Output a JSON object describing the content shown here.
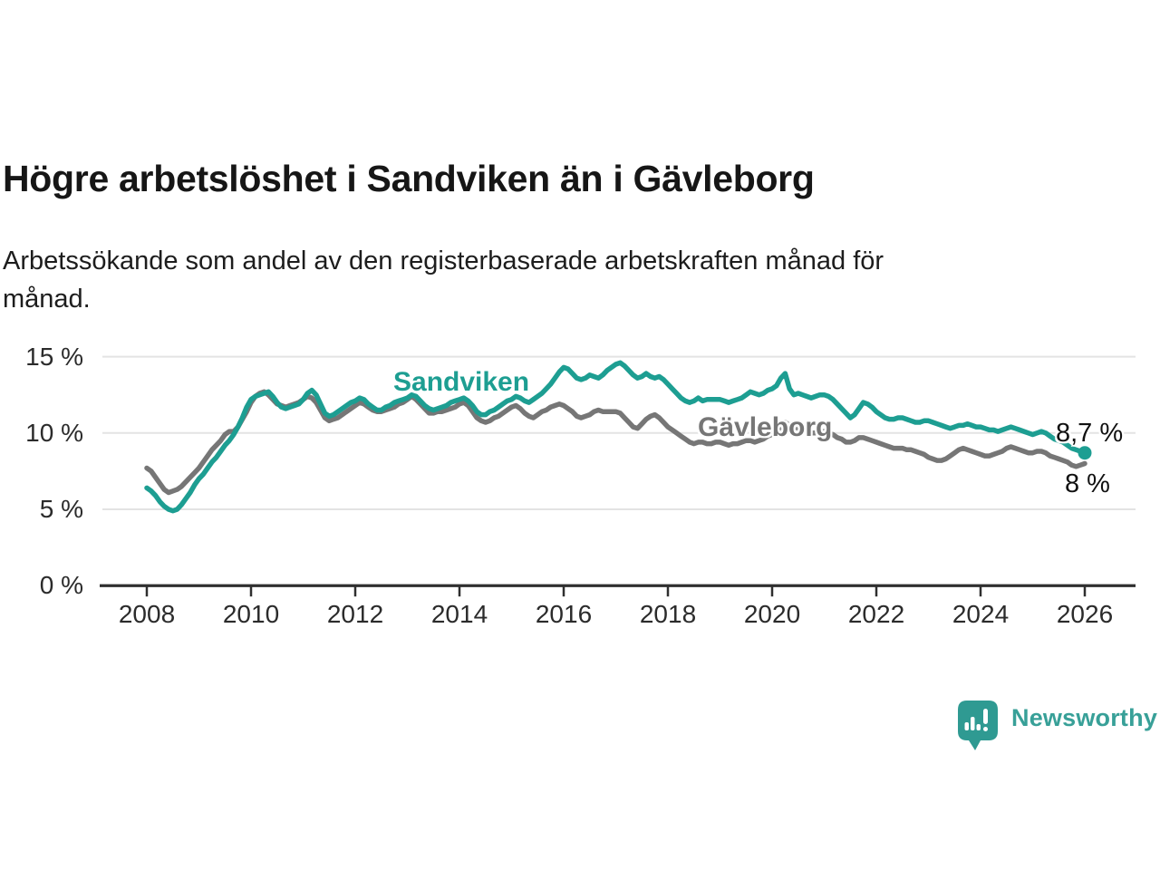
{
  "header": {
    "title": "Högre arbetslöshet i Sandviken än i Gävleborg",
    "subtitle": "Arbetssökande som andel av den registerbaserade arbetskraften månad för\nmånad."
  },
  "chart_data": {
    "type": "line",
    "title": "Högre arbetslöshet i Sandviken än i Gävleborg",
    "xlabel": "",
    "ylabel": "",
    "unit": "%",
    "frequency": "monthly",
    "x_start": "2008-01",
    "x_end": "2026-01",
    "ylim": [
      0,
      15.5
    ],
    "grid": true,
    "y_ticks": [
      {
        "value": 15,
        "label": "15 %"
      },
      {
        "value": 10,
        "label": "10 %"
      },
      {
        "value": 5,
        "label": "5 %"
      },
      {
        "value": 0,
        "label": "0 %"
      }
    ],
    "x_ticks": [
      {
        "year": 2008,
        "label": "2008"
      },
      {
        "year": 2010,
        "label": "2010"
      },
      {
        "year": 2012,
        "label": "2012"
      },
      {
        "year": 2014,
        "label": "2014"
      },
      {
        "year": 2016,
        "label": "2016"
      },
      {
        "year": 2018,
        "label": "2018"
      },
      {
        "year": 2020,
        "label": "2020"
      },
      {
        "year": 2022,
        "label": "2022"
      },
      {
        "year": 2024,
        "label": "2024"
      },
      {
        "year": 2026,
        "label": "2026"
      }
    ],
    "series": [
      {
        "name": "Sandviken",
        "color": "#1d9e92",
        "end_value": 8.7,
        "end_label": "8,7 %",
        "values": [
          6.4,
          6.2,
          5.9,
          5.5,
          5.2,
          5.0,
          4.9,
          5.0,
          5.3,
          5.7,
          6.1,
          6.6,
          7.0,
          7.3,
          7.7,
          8.1,
          8.4,
          8.8,
          9.2,
          9.5,
          9.9,
          10.4,
          11.0,
          11.7,
          12.2,
          12.4,
          12.5,
          12.6,
          12.7,
          12.4,
          12.0,
          11.7,
          11.6,
          11.7,
          11.8,
          11.9,
          12.2,
          12.6,
          12.8,
          12.5,
          11.9,
          11.3,
          11.1,
          11.2,
          11.4,
          11.6,
          11.8,
          12.0,
          12.1,
          12.3,
          12.2,
          11.9,
          11.7,
          11.5,
          11.5,
          11.7,
          11.8,
          12.0,
          12.1,
          12.2,
          12.3,
          12.5,
          12.4,
          12.1,
          11.8,
          11.6,
          11.5,
          11.6,
          11.7,
          11.8,
          12.0,
          12.1,
          12.2,
          12.3,
          12.1,
          11.8,
          11.4,
          11.2,
          11.2,
          11.4,
          11.5,
          11.7,
          11.9,
          12.1,
          12.2,
          12.4,
          12.3,
          12.1,
          12.0,
          12.2,
          12.4,
          12.6,
          12.9,
          13.2,
          13.6,
          14.0,
          14.3,
          14.2,
          13.9,
          13.6,
          13.5,
          13.6,
          13.8,
          13.7,
          13.6,
          13.8,
          14.1,
          14.3,
          14.5,
          14.6,
          14.4,
          14.1,
          13.8,
          13.6,
          13.7,
          13.9,
          13.7,
          13.6,
          13.7,
          13.5,
          13.2,
          12.9,
          12.6,
          12.3,
          12.1,
          12.0,
          12.1,
          12.3,
          12.1,
          12.2,
          12.2,
          12.2,
          12.2,
          12.1,
          12.0,
          12.1,
          12.2,
          12.3,
          12.5,
          12.7,
          12.6,
          12.5,
          12.6,
          12.8,
          12.9,
          13.1,
          13.6,
          13.9,
          12.9,
          12.5,
          12.6,
          12.5,
          12.4,
          12.3,
          12.4,
          12.5,
          12.5,
          12.4,
          12.2,
          11.9,
          11.6,
          11.3,
          11.0,
          11.2,
          11.6,
          12.0,
          11.9,
          11.7,
          11.4,
          11.2,
          11.0,
          10.9,
          10.9,
          11.0,
          11.0,
          10.9,
          10.8,
          10.7,
          10.7,
          10.8,
          10.8,
          10.7,
          10.6,
          10.5,
          10.4,
          10.3,
          10.4,
          10.5,
          10.5,
          10.6,
          10.5,
          10.4,
          10.4,
          10.3,
          10.2,
          10.2,
          10.1,
          10.2,
          10.3,
          10.4,
          10.3,
          10.2,
          10.1,
          10.0,
          9.9,
          10.0,
          10.1,
          10.0,
          9.8,
          9.6,
          9.5,
          9.4,
          9.2,
          9.0,
          8.9,
          8.8,
          8.7
        ]
      },
      {
        "name": "Gävleborg",
        "color": "#767676",
        "end_value": 8.0,
        "end_label": "8 %",
        "values": [
          7.7,
          7.5,
          7.1,
          6.7,
          6.3,
          6.1,
          6.2,
          6.3,
          6.5,
          6.8,
          7.1,
          7.4,
          7.7,
          8.1,
          8.5,
          8.9,
          9.2,
          9.5,
          9.9,
          10.1,
          10.1,
          10.4,
          10.9,
          11.4,
          12.0,
          12.4,
          12.6,
          12.7,
          12.5,
          12.2,
          11.9,
          11.8,
          11.7,
          11.8,
          11.9,
          12.0,
          12.2,
          12.4,
          12.3,
          12.0,
          11.5,
          11.0,
          10.8,
          10.9,
          11.0,
          11.2,
          11.4,
          11.6,
          11.8,
          12.0,
          11.9,
          11.7,
          11.5,
          11.4,
          11.4,
          11.5,
          11.6,
          11.7,
          11.9,
          12.0,
          12.2,
          12.4,
          12.2,
          11.9,
          11.6,
          11.3,
          11.3,
          11.4,
          11.4,
          11.5,
          11.6,
          11.7,
          11.9,
          12.0,
          11.8,
          11.4,
          11.0,
          10.8,
          10.7,
          10.8,
          11.0,
          11.1,
          11.3,
          11.5,
          11.7,
          11.8,
          11.6,
          11.3,
          11.1,
          11.0,
          11.2,
          11.4,
          11.5,
          11.7,
          11.8,
          11.9,
          11.8,
          11.6,
          11.4,
          11.1,
          11.0,
          11.1,
          11.2,
          11.4,
          11.5,
          11.4,
          11.4,
          11.4,
          11.4,
          11.3,
          11.0,
          10.7,
          10.4,
          10.3,
          10.6,
          10.9,
          11.1,
          11.2,
          11.0,
          10.7,
          10.4,
          10.2,
          10.0,
          9.8,
          9.6,
          9.4,
          9.3,
          9.4,
          9.4,
          9.3,
          9.3,
          9.4,
          9.4,
          9.3,
          9.2,
          9.3,
          9.3,
          9.4,
          9.5,
          9.5,
          9.4,
          9.5,
          9.6,
          9.8,
          9.9,
          10.1,
          10.4,
          10.7,
          10.5,
          10.4,
          10.3,
          10.2,
          10.1,
          10.0,
          10.0,
          10.1,
          10.1,
          10.0,
          9.9,
          9.7,
          9.6,
          9.4,
          9.4,
          9.5,
          9.7,
          9.7,
          9.6,
          9.5,
          9.4,
          9.3,
          9.2,
          9.1,
          9.0,
          9.0,
          9.0,
          8.9,
          8.9,
          8.8,
          8.7,
          8.6,
          8.4,
          8.3,
          8.2,
          8.2,
          8.3,
          8.5,
          8.7,
          8.9,
          9.0,
          8.9,
          8.8,
          8.7,
          8.6,
          8.5,
          8.5,
          8.6,
          8.7,
          8.8,
          9.0,
          9.1,
          9.0,
          8.9,
          8.8,
          8.7,
          8.7,
          8.8,
          8.8,
          8.7,
          8.5,
          8.4,
          8.3,
          8.2,
          8.1,
          7.9,
          7.8,
          7.9,
          8.0
        ]
      }
    ],
    "legend_position": "inline-labels"
  },
  "colors": {
    "sandviken_line": "#1d9e92",
    "gavleborg_line": "#767676",
    "gridline": "#e3e3e3",
    "axis": "#2f2f2f",
    "text": "#161616",
    "brand_teal": "#38a098"
  },
  "footer": {
    "brand": "Newsworthy"
  }
}
